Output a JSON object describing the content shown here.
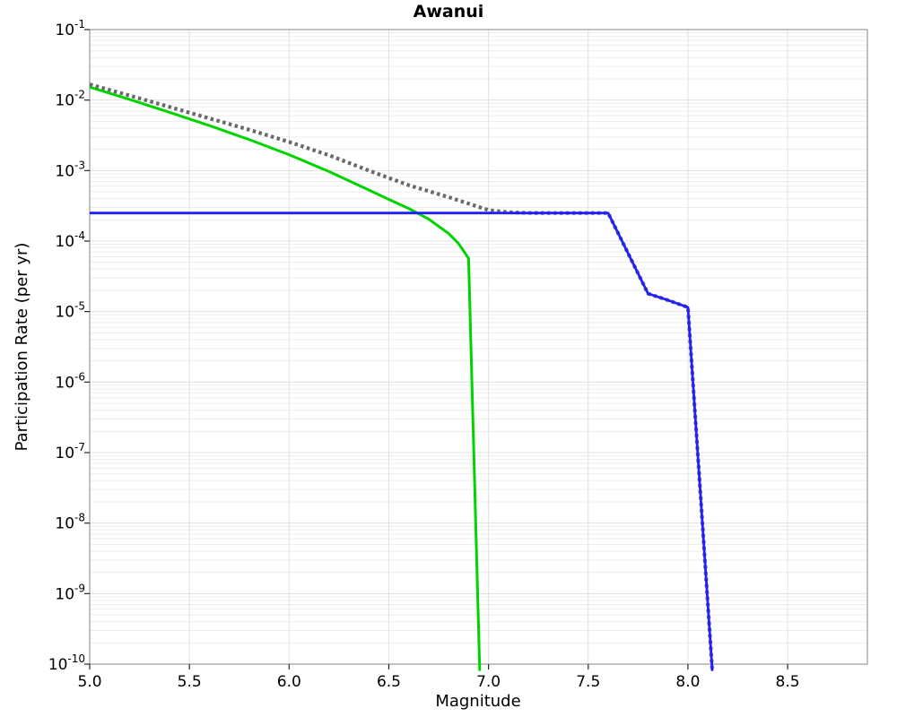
{
  "title": "Awanui",
  "chart_data": {
    "type": "line",
    "title": "Awanui",
    "xlabel": "Magnitude",
    "ylabel": "Participation Rate (per yr)",
    "xlim": [
      5.0,
      8.9
    ],
    "ylim": [
      1e-10,
      0.1
    ],
    "ylim_exponents": [
      -10,
      -1
    ],
    "yscale": "log",
    "grid": true,
    "legend_position": "none",
    "x_ticks": [
      5.0,
      5.5,
      6.0,
      6.5,
      7.0,
      7.5,
      8.0,
      8.5
    ],
    "x_tick_labels": [
      "5.0",
      "5.5",
      "6.0",
      "6.5",
      "7.0",
      "7.5",
      "8.0",
      "8.5"
    ],
    "y_tick_exponents": [
      -1,
      -2,
      -3,
      -4,
      -5,
      -6,
      -7,
      -8,
      -9,
      -10
    ],
    "y_tick_base": "10",
    "series": [
      {
        "name": "green-solid-curve",
        "color": "#00d400",
        "style": "solid",
        "width": 3,
        "points": [
          [
            5.0,
            0.0153
          ],
          [
            5.2,
            0.0102
          ],
          [
            5.4,
            0.0067
          ],
          [
            5.6,
            0.00435
          ],
          [
            5.8,
            0.00275
          ],
          [
            6.0,
            0.00168
          ],
          [
            6.2,
            0.00097
          ],
          [
            6.4,
            0.00053
          ],
          [
            6.5,
            0.00039
          ],
          [
            6.6,
            0.00029
          ],
          [
            6.7,
            0.000205
          ],
          [
            6.8,
            0.000128
          ],
          [
            6.85,
            9.2e-05
          ],
          [
            6.9,
            5.7e-05
          ],
          [
            6.92,
            4.5e-07
          ],
          [
            6.94,
            3.6e-09
          ],
          [
            6.956,
            8e-11
          ]
        ]
      },
      {
        "name": "gray-dotted-curve",
        "color": "#696969",
        "style": "dotted",
        "width": 4.2,
        "points": [
          [
            5.0,
            0.0167
          ],
          [
            5.2,
            0.0116
          ],
          [
            5.4,
            0.008
          ],
          [
            5.6,
            0.0055
          ],
          [
            5.8,
            0.0038
          ],
          [
            6.0,
            0.00255
          ],
          [
            6.2,
            0.00165
          ],
          [
            6.4,
            0.001
          ],
          [
            6.6,
            0.00062
          ],
          [
            6.8,
            0.00042
          ],
          [
            6.9,
            0.00034
          ],
          [
            7.0,
            0.000275
          ],
          [
            7.1,
            0.000256
          ],
          [
            7.2,
            0.000251
          ],
          [
            7.35,
            0.00025
          ],
          [
            7.6,
            0.00025
          ],
          [
            7.7,
            6.7e-05
          ],
          [
            7.8,
            1.8e-05
          ],
          [
            7.9,
            1.45e-05
          ],
          [
            8.0,
            1.15e-05
          ],
          [
            8.06,
            3.4e-08
          ],
          [
            8.12,
            1e-10
          ],
          [
            8.122,
            8e-11
          ]
        ]
      },
      {
        "name": "blue-solid-curve",
        "color": "#1f1fff",
        "style": "solid",
        "width": 2.8,
        "points": [
          [
            5.0,
            0.00025
          ],
          [
            7.6,
            0.00025
          ],
          [
            7.7,
            6.7e-05
          ],
          [
            7.8,
            1.8e-05
          ],
          [
            7.9,
            1.45e-05
          ],
          [
            8.0,
            1.15e-05
          ],
          [
            8.06,
            3.4e-08
          ],
          [
            8.12,
            1e-10
          ],
          [
            8.122,
            8e-11
          ]
        ]
      }
    ]
  },
  "colors": {
    "background": "#ffffff",
    "frame": "#999999",
    "grid_major": "#e0e0e0",
    "grid_minor": "#ededed",
    "tick": "#262626",
    "text": "#000000",
    "series_green": "#00d400",
    "series_gray": "#696969",
    "series_blue": "#1f1fff"
  }
}
